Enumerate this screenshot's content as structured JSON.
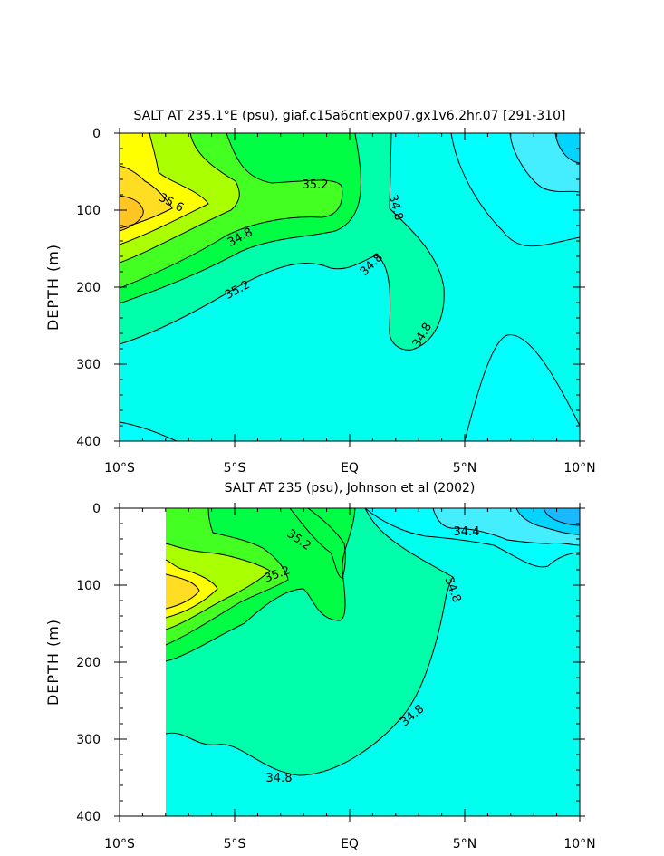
{
  "chart_data": [
    {
      "type": "contour",
      "title": "SALT AT 235.1°E (psu), giaf.c15a6cntlexp07.gx1v6.2hr.07 [291-310]",
      "xlabel": "",
      "ylabel": "DEPTH (m)",
      "x_ticks": [
        "10°S",
        "5°S",
        "EQ",
        "5°N",
        "10°N"
      ],
      "x_range_deg_lat": [
        -10,
        10
      ],
      "y_ticks": [
        "0",
        "100",
        "200",
        "300",
        "400"
      ],
      "y_range_m": [
        0,
        400
      ],
      "y_inverted": true,
      "contour_labels": [
        "35.6",
        "35.2",
        "34.8",
        "35.2",
        "34.8",
        "34.8",
        "34.8"
      ],
      "levels": [
        34.2,
        34.4,
        34.6,
        34.8,
        35.0,
        35.2,
        35.4,
        35.6,
        35.8,
        36.0
      ],
      "colors": {
        "below_34.4": "#00d4ff",
        "34.4_34.6": "#44eeff",
        "34.6_34.8": "#00ffee",
        "34.8_35.0": "#00ffaa",
        "35.0_35.2": "#00ff44",
        "35.2_35.4": "#44ff22",
        "35.4_35.6": "#aaff00",
        "35.6_35.8": "#ffff00",
        "35.8_36.0": "#ffdd22"
      }
    },
    {
      "type": "contour",
      "title": "SALT AT 235 (psu), Johnson et al (2002)",
      "xlabel": "",
      "ylabel": "DEPTH (m)",
      "x_ticks": [
        "10°S",
        "5°S",
        "EQ",
        "5°N",
        "10°N"
      ],
      "x_range_deg_lat": [
        -10,
        10
      ],
      "y_ticks": [
        "0",
        "100",
        "200",
        "300",
        "400"
      ],
      "y_range_m": [
        0,
        400
      ],
      "y_inverted": true,
      "data_starts_deg_lat": -8,
      "contour_labels": [
        "35.2",
        "35.2",
        "34.4",
        "34.8",
        "34.8",
        "34.8"
      ]
    }
  ]
}
